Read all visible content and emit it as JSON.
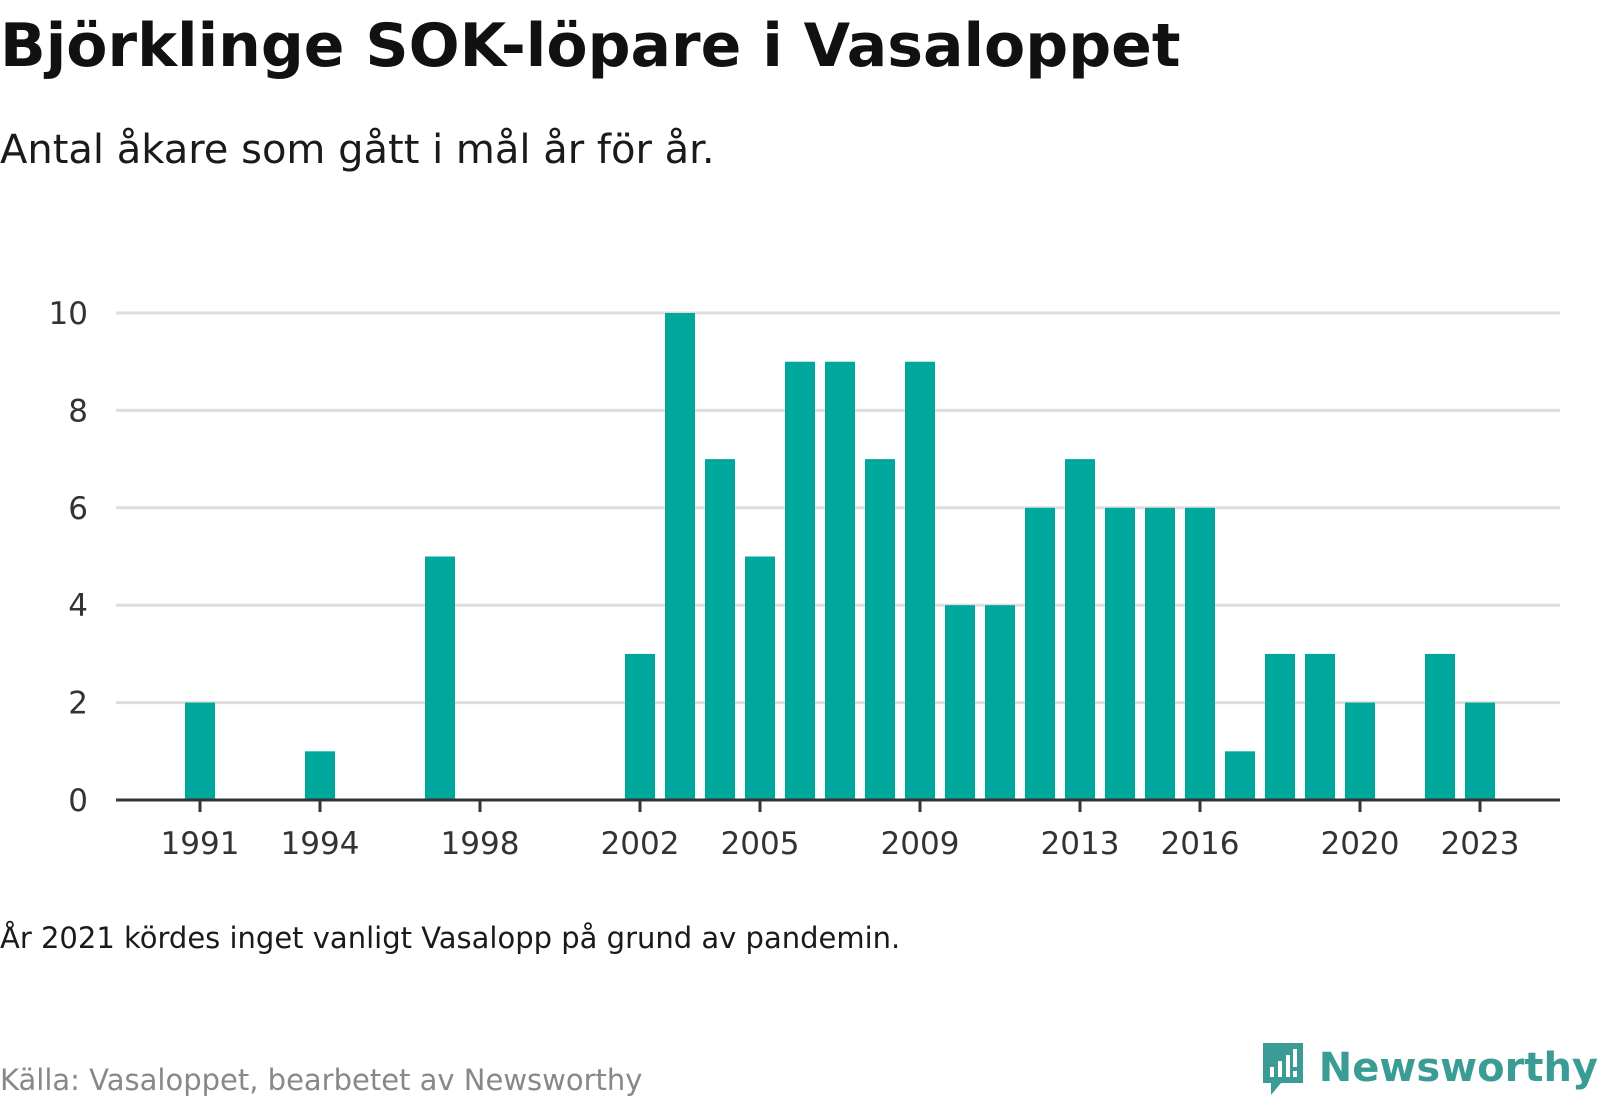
{
  "title": "Björklinge SOK-löpare i Vasaloppet",
  "subtitle": "Antal åkare som gått i mål år för år.",
  "note": "År 2021 kördes inget vanligt Vasalopp på grund av pandemin.",
  "source": "Källa: Vasaloppet, bearbetet av Newsworthy",
  "brand": "Newsworthy",
  "colors": {
    "bar": "#00a79d",
    "grid": "#dddddd",
    "axis": "#333333",
    "brand": "#3a9c95"
  },
  "chart_data": {
    "type": "bar",
    "x": [
      1991,
      1994,
      1997,
      2002,
      2003,
      2004,
      2005,
      2006,
      2007,
      2008,
      2009,
      2010,
      2011,
      2012,
      2013,
      2014,
      2015,
      2016,
      2017,
      2018,
      2019,
      2020,
      2022,
      2023
    ],
    "values": [
      2,
      1,
      5,
      3,
      10,
      7,
      5,
      9,
      9,
      7,
      9,
      4,
      4,
      6,
      7,
      6,
      6,
      6,
      1,
      3,
      3,
      2,
      3,
      2
    ],
    "xlim": [
      1988.9,
      2025
    ],
    "ylim": [
      0,
      10
    ],
    "yticks": [
      "0",
      "2",
      "4",
      "6",
      "8",
      "10"
    ],
    "xticks": [
      "1991",
      "1994",
      "1998",
      "2002",
      "2005",
      "2009",
      "2013",
      "2016",
      "2020",
      "2023"
    ],
    "xlabel": "",
    "ylabel": "",
    "grid": true
  }
}
